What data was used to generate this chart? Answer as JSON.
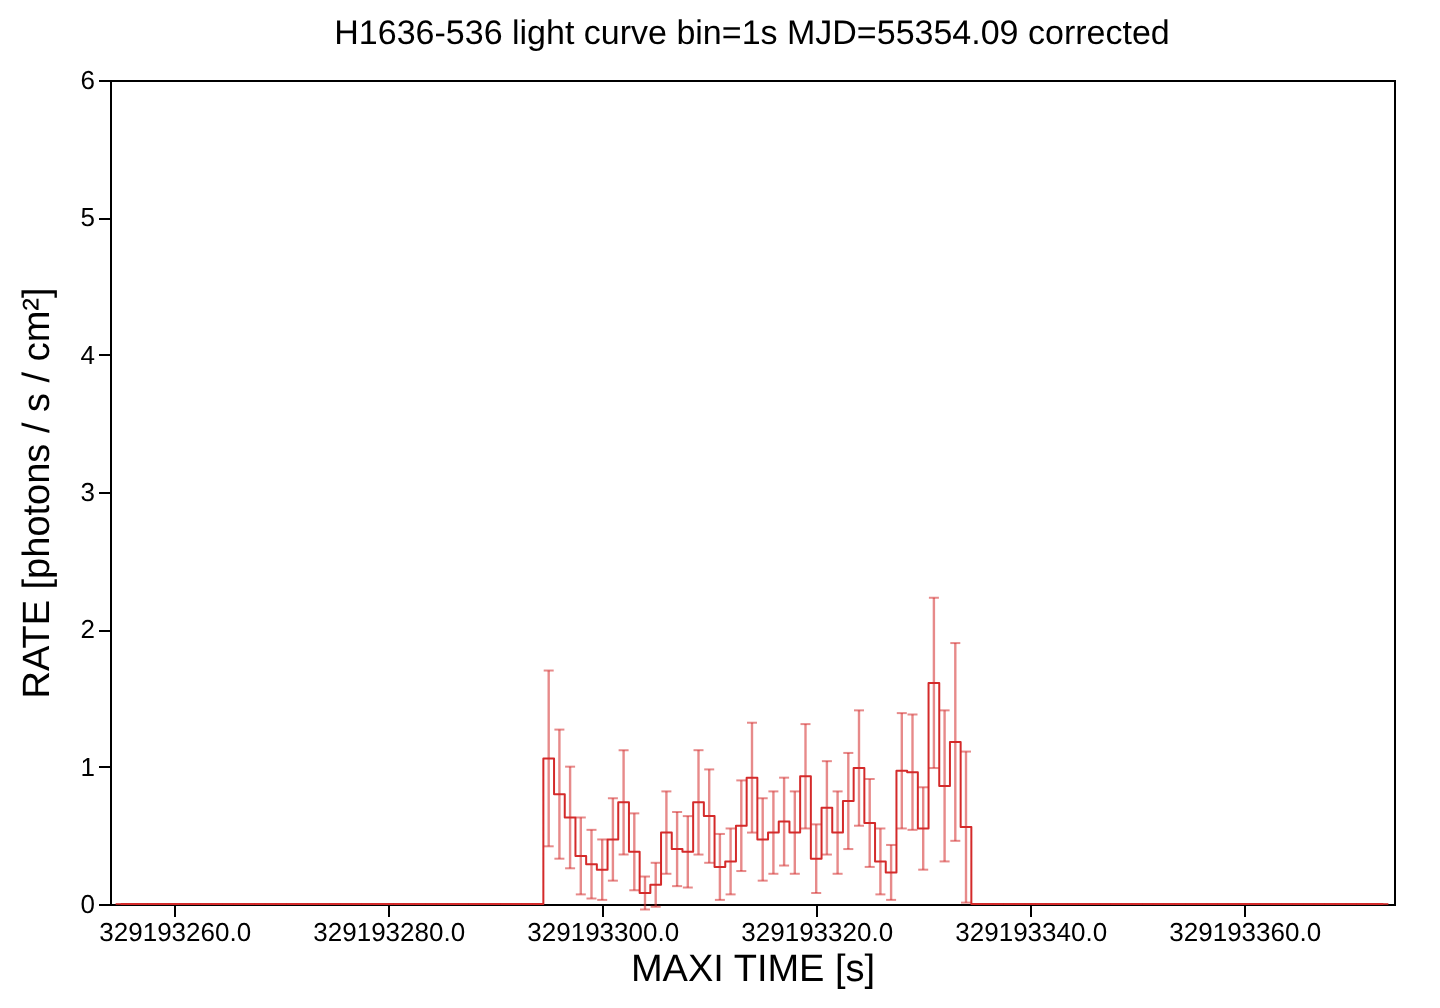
{
  "chart_data": {
    "type": "step",
    "title": "H1636-536 light curve bin=1s MJD=55354.09 corrected",
    "xlabel": "MAXI TIME [s]",
    "ylabel": "RATE [photons / s / cm²]",
    "xlim": [
      329193254,
      329193374
    ],
    "xticks": [
      {
        "value": 329193260,
        "label": "329193260.0"
      },
      {
        "value": 329193280,
        "label": "329193280.0"
      },
      {
        "value": 329193300,
        "label": "329193300.0"
      },
      {
        "value": 329193320,
        "label": "329193320.0"
      },
      {
        "value": 329193340,
        "label": "329193340.0"
      },
      {
        "value": 329193360,
        "label": "329193360.0"
      }
    ],
    "ylim": [
      0,
      6
    ],
    "yticks": [
      0,
      1,
      2,
      3,
      4,
      5,
      6
    ],
    "grid": false,
    "marker": "none",
    "line_style": "solid",
    "series": [
      {
        "color": "#d42a2a",
        "x": [
          329193255,
          329193256,
          329193257,
          329193258,
          329193259,
          329193260,
          329193261,
          329193262,
          329193263,
          329193264,
          329193265,
          329193266,
          329193267,
          329193268,
          329193269,
          329193270,
          329193271,
          329193272,
          329193273,
          329193274,
          329193275,
          329193276,
          329193277,
          329193278,
          329193279,
          329193280,
          329193281,
          329193282,
          329193283,
          329193284,
          329193285,
          329193286,
          329193287,
          329193288,
          329193289,
          329193290,
          329193291,
          329193292,
          329193293,
          329193294,
          329193295,
          329193296,
          329193297,
          329193298,
          329193299,
          329193300,
          329193301,
          329193302,
          329193303,
          329193304,
          329193305,
          329193306,
          329193307,
          329193308,
          329193309,
          329193310,
          329193311,
          329193312,
          329193313,
          329193314,
          329193315,
          329193316,
          329193317,
          329193318,
          329193319,
          329193320,
          329193321,
          329193322,
          329193323,
          329193324,
          329193325,
          329193326,
          329193327,
          329193328,
          329193329,
          329193330,
          329193331,
          329193332,
          329193333,
          329193334,
          329193335,
          329193336,
          329193337,
          329193338,
          329193339,
          329193340,
          329193341,
          329193342,
          329193343,
          329193344,
          329193345,
          329193346,
          329193347,
          329193348,
          329193349,
          329193350,
          329193351,
          329193352,
          329193353,
          329193354,
          329193355,
          329193356,
          329193357,
          329193358,
          329193359,
          329193360,
          329193361,
          329193362,
          329193363,
          329193364,
          329193365,
          329193366,
          329193367,
          329193368,
          329193369,
          329193370,
          329193371,
          329193372,
          329193373
        ],
        "values": [
          0,
          0,
          0,
          0,
          0,
          0,
          0,
          0,
          0,
          0,
          0,
          0,
          0,
          0,
          0,
          0,
          0,
          0,
          0,
          0,
          0,
          0,
          0,
          0,
          0,
          0,
          0,
          0,
          0,
          0,
          0,
          0,
          0,
          0,
          0,
          0,
          0,
          0,
          0,
          0,
          1.06,
          0.8,
          0.63,
          0.35,
          0.29,
          0.25,
          0.47,
          0.74,
          0.38,
          0.08,
          0.14,
          0.52,
          0.4,
          0.38,
          0.74,
          0.64,
          0.27,
          0.31,
          0.57,
          0.92,
          0.47,
          0.52,
          0.6,
          0.52,
          0.93,
          0.33,
          0.7,
          0.52,
          0.75,
          0.99,
          0.59,
          0.31,
          0.23,
          0.97,
          0.96,
          0.55,
          1.61,
          0.86,
          1.18,
          0.56,
          0,
          0,
          0,
          0,
          0,
          0,
          0,
          0,
          0,
          0,
          0,
          0,
          0,
          0,
          0,
          0,
          0,
          0,
          0,
          0,
          0,
          0,
          0,
          0,
          0,
          0,
          0,
          0,
          0,
          0,
          0,
          0,
          0,
          0,
          0,
          0,
          0,
          0,
          0
        ],
        "errors": [
          0,
          0,
          0,
          0,
          0,
          0,
          0,
          0,
          0,
          0,
          0,
          0,
          0,
          0,
          0,
          0,
          0,
          0,
          0,
          0,
          0,
          0,
          0,
          0,
          0,
          0,
          0,
          0,
          0,
          0,
          0,
          0,
          0,
          0,
          0,
          0,
          0,
          0,
          0,
          0,
          0.64,
          0.47,
          0.37,
          0.28,
          0.25,
          0.22,
          0.3,
          0.38,
          0.28,
          0.12,
          0.16,
          0.3,
          0.27,
          0.26,
          0.38,
          0.34,
          0.24,
          0.24,
          0.33,
          0.4,
          0.3,
          0.3,
          0.32,
          0.3,
          0.38,
          0.25,
          0.34,
          0.3,
          0.35,
          0.42,
          0.32,
          0.24,
          0.2,
          0.42,
          0.42,
          0.3,
          0.62,
          0.55,
          0.72,
          0.55,
          0,
          0,
          0,
          0,
          0,
          0,
          0,
          0,
          0,
          0,
          0,
          0,
          0,
          0,
          0,
          0,
          0,
          0,
          0,
          0,
          0,
          0,
          0,
          0,
          0,
          0,
          0,
          0,
          0,
          0,
          0,
          0,
          0,
          0,
          0,
          0,
          0,
          0,
          0
        ]
      }
    ]
  }
}
